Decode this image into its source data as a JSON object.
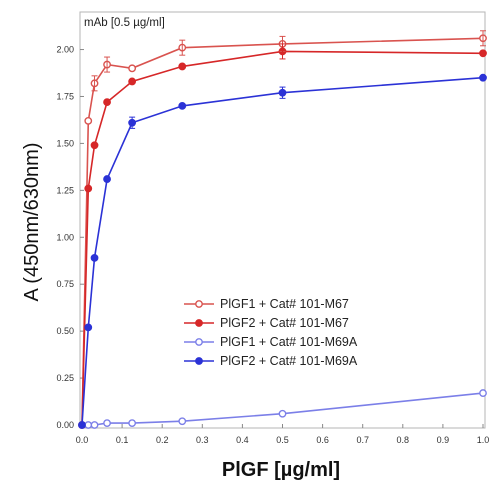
{
  "chart_data": {
    "type": "line",
    "annotation": "mAb [0.5 µg/ml]",
    "xlabel": "PlGF [µg/ml]",
    "ylabel": "A (450nm/630nm)",
    "xlim": [
      0,
      1.0
    ],
    "ylim": [
      0,
      2.2
    ],
    "x_ticks": [
      "0.0",
      "0.1",
      "0.2",
      "0.3",
      "0.4",
      "0.5",
      "0.6",
      "0.7",
      "0.8",
      "0.9",
      "1.0"
    ],
    "y_ticks": [
      "0.00",
      "0.25",
      "0.50",
      "0.75",
      "1.00",
      "1.25",
      "1.50",
      "1.75",
      "2.00"
    ],
    "grid": false,
    "legend_position": "center",
    "series": [
      {
        "name": "PlGF1 + Cat# 101-M67",
        "color": "#d9534f",
        "marker": "open-circle",
        "x": [
          0,
          0.0156,
          0.03125,
          0.0625,
          0.125,
          0.25,
          0.5,
          1.0
        ],
        "y": [
          0.0,
          1.62,
          1.82,
          1.92,
          1.9,
          2.01,
          2.03,
          2.06
        ]
      },
      {
        "name": "PlGF2 + Cat# 101-M67",
        "color": "#d62728",
        "marker": "filled-circle",
        "x": [
          0,
          0.0156,
          0.03125,
          0.0625,
          0.125,
          0.25,
          0.5,
          1.0
        ],
        "y": [
          0.0,
          1.26,
          1.49,
          1.72,
          1.83,
          1.91,
          1.99,
          1.98
        ]
      },
      {
        "name": "PlGF1 + Cat# 101-M69A",
        "color": "#7b7fe8",
        "marker": "open-circle",
        "x": [
          0,
          0.0156,
          0.03125,
          0.0625,
          0.125,
          0.25,
          0.5,
          1.0
        ],
        "y": [
          0.0,
          0.0,
          0.0,
          0.01,
          0.01,
          0.02,
          0.06,
          0.17
        ]
      },
      {
        "name": "PlGF2 + Cat# 101-M69A",
        "color": "#2b32d6",
        "marker": "filled-circle",
        "x": [
          0,
          0.0156,
          0.03125,
          0.0625,
          0.125,
          0.25,
          0.5,
          1.0
        ],
        "y": [
          0.0,
          0.52,
          0.89,
          1.31,
          1.61,
          1.7,
          1.77,
          1.85
        ]
      }
    ]
  }
}
